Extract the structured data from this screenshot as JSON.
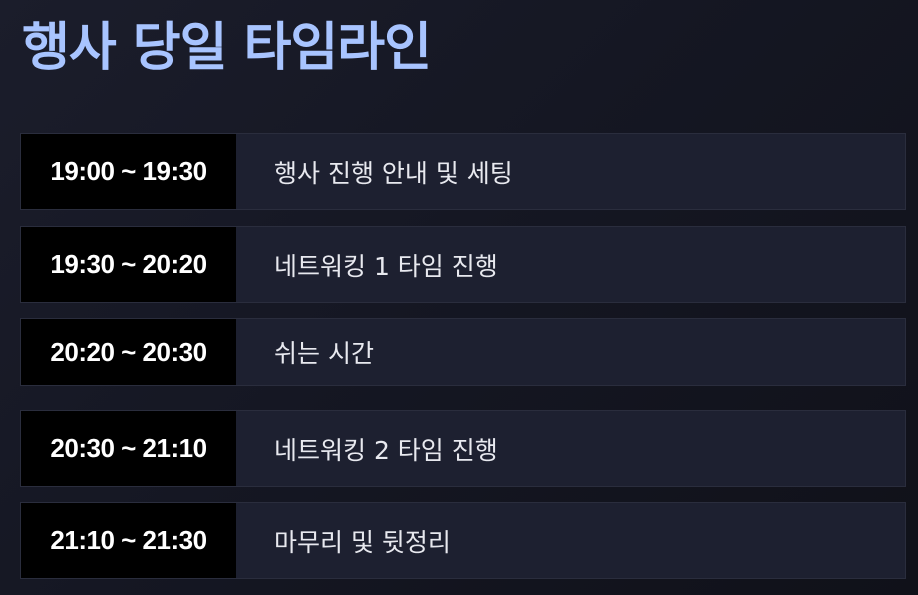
{
  "page": {
    "title": "행사 당일 타임라인"
  },
  "timeline": {
    "rows": [
      {
        "time": "19:00 ~ 19:30",
        "desc": "행사 진행 안내 및 세팅"
      },
      {
        "time": "19:30 ~ 20:20",
        "desc": "네트워킹 1 타임 진행"
      },
      {
        "time": "20:20 ~ 20:30",
        "desc": "쉬는 시간"
      },
      {
        "time": "20:30 ~ 21:10",
        "desc": "네트워킹 2 타임 진행"
      },
      {
        "time": "21:10 ~ 21:30",
        "desc": "마무리 및 뒷정리"
      }
    ]
  },
  "colors": {
    "title": "#a8c4ff",
    "time_cell_bg": "#000000",
    "desc_cell_bg": "#1d2030",
    "page_bg": "#161824"
  }
}
